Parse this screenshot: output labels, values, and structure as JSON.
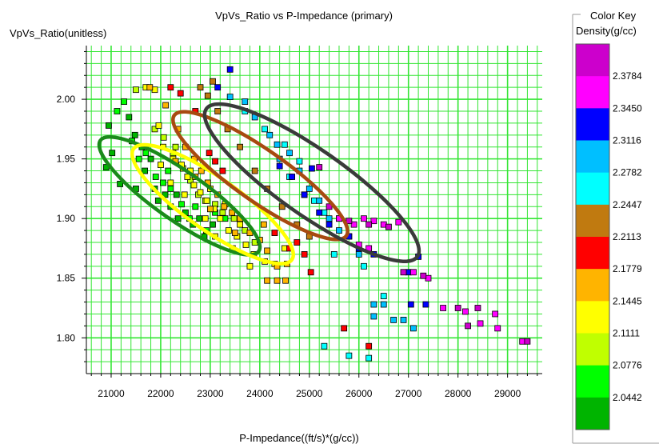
{
  "chart_data": {
    "type": "scatter",
    "title": "VpVs_Ratio  vs P-Impedance (primary)",
    "xlabel": "P-Impedance((ft/s)*(g/cc))",
    "ylabel": "VpVs_Ratio(unitless)",
    "xlim": [
      20500,
      29700
    ],
    "ylim": [
      1.77,
      2.045
    ],
    "grid": true,
    "grid_color": "#33e633",
    "x_ticks": [
      21000,
      22000,
      23000,
      24000,
      25000,
      26000,
      27000,
      28000,
      29000
    ],
    "x_tick_labels": [
      "21000",
      "22000",
      "23000",
      "24000",
      "25000",
      "26000",
      "27000",
      "28000",
      "29000"
    ],
    "y_ticks": [
      1.8,
      1.85,
      1.9,
      1.95,
      2.0
    ],
    "y_tick_labels": [
      "1.80",
      "1.85",
      "1.90",
      "1.95",
      "2.00"
    ],
    "color_key": {
      "title": "Color Key",
      "subtitle": "Density(g/cc)",
      "colors": [
        "#cc00cc",
        "#ff00ff",
        "#0000ff",
        "#00bfff",
        "#00ffff",
        "#c07a10",
        "#ff0000",
        "#ffb400",
        "#ffff00",
        "#c0ff00",
        "#00ff00",
        "#00b400"
      ],
      "labels": [
        "2.3784",
        "2.3450",
        "2.3116",
        "2.2782",
        "2.2447",
        "2.2113",
        "2.1779",
        "2.1445",
        "2.1111",
        "2.0776",
        "2.0442"
      ]
    },
    "ellipses": [
      {
        "color": "#1a8a1a",
        "cx": 22380,
        "cy": 1.919,
        "rx": 1950,
        "ry": 0.0205,
        "angle": 35
      },
      {
        "color": "#ffff00",
        "cx": 23050,
        "cy": 1.912,
        "rx": 1950,
        "ry": 0.022,
        "angle": 35
      },
      {
        "color": "#a84a10",
        "cx": 24010,
        "cy": 1.936,
        "rx": 2120,
        "ry": 0.0215,
        "angle": 35
      },
      {
        "color": "#3a3a3a",
        "cx": 25050,
        "cy": 1.93,
        "rx": 2600,
        "ry": 0.0275,
        "angle": 35
      }
    ],
    "series_points": [
      {
        "color": "#00b400",
        "points": [
          [
            20950,
            1.978
          ],
          [
            20900,
            1.943
          ],
          [
            21020,
            1.955
          ],
          [
            21180,
            1.929
          ],
          [
            21360,
            1.985
          ],
          [
            21480,
            1.97
          ],
          [
            21620,
            1.96
          ],
          [
            21800,
            1.95
          ],
          [
            21680,
            1.94
          ],
          [
            21880,
            1.925
          ],
          [
            21950,
            1.915
          ],
          [
            22090,
            1.92
          ],
          [
            22200,
            1.91
          ],
          [
            22350,
            1.9
          ],
          [
            22500,
            1.905
          ],
          [
            22650,
            1.895
          ],
          [
            22780,
            1.9
          ],
          [
            22880,
            1.885
          ],
          [
            23050,
            1.895
          ],
          [
            22320,
            1.92
          ],
          [
            21500,
            1.925
          ]
        ]
      },
      {
        "color": "#00ff00",
        "points": [
          [
            21120,
            1.99
          ],
          [
            21260,
            1.998
          ],
          [
            21420,
            1.965
          ],
          [
            21560,
            1.95
          ],
          [
            21900,
            1.935
          ],
          [
            22050,
            1.93
          ],
          [
            22200,
            1.925
          ],
          [
            22420,
            1.912
          ],
          [
            22580,
            1.9
          ],
          [
            22700,
            1.91
          ],
          [
            22920,
            1.89
          ],
          [
            23100,
            1.905
          ],
          [
            23300,
            1.9
          ],
          [
            21700,
            1.955
          ],
          [
            22150,
            1.94
          ]
        ]
      },
      {
        "color": "#c0ff00",
        "points": [
          [
            21500,
            2.008
          ],
          [
            21880,
            1.975
          ],
          [
            22060,
            1.968
          ],
          [
            22250,
            1.955
          ],
          [
            22450,
            1.942
          ],
          [
            22600,
            1.932
          ],
          [
            22760,
            1.92
          ],
          [
            22900,
            1.915
          ],
          [
            23100,
            1.912
          ],
          [
            23250,
            1.905
          ],
          [
            23480,
            1.9
          ],
          [
            23700,
            1.89
          ],
          [
            23900,
            1.88
          ],
          [
            22300,
            1.96
          ]
        ]
      },
      {
        "color": "#ffff00",
        "points": [
          [
            21700,
            2.01
          ],
          [
            21880,
            2.008
          ],
          [
            21960,
            1.978
          ],
          [
            22050,
            1.96
          ],
          [
            22250,
            1.95
          ],
          [
            22420,
            1.945
          ],
          [
            22540,
            1.935
          ],
          [
            22670,
            1.928
          ],
          [
            22800,
            1.922
          ],
          [
            22930,
            1.915
          ],
          [
            23080,
            1.908
          ],
          [
            23200,
            1.9
          ],
          [
            23370,
            1.89
          ],
          [
            23540,
            1.885
          ],
          [
            23720,
            1.878
          ],
          [
            23880,
            1.87
          ],
          [
            24100,
            1.864
          ],
          [
            23000,
            1.925
          ],
          [
            22600,
            1.94
          ],
          [
            23300,
            1.912
          ],
          [
            23600,
            1.895
          ],
          [
            22200,
            1.93
          ],
          [
            22480,
            1.92
          ],
          [
            22900,
            1.9
          ],
          [
            23100,
            1.885
          ],
          [
            23450,
            1.875
          ],
          [
            23800,
            1.86
          ],
          [
            24300,
            1.862
          ],
          [
            24500,
            1.875
          ],
          [
            22000,
            1.945
          ]
        ]
      },
      {
        "color": "#ffb400",
        "points": [
          [
            21780,
            2.01
          ],
          [
            22100,
            1.995
          ],
          [
            22350,
            1.975
          ],
          [
            22500,
            1.96
          ],
          [
            22680,
            1.95
          ],
          [
            22820,
            1.94
          ],
          [
            22950,
            1.93
          ],
          [
            23150,
            1.92
          ],
          [
            23280,
            1.91
          ],
          [
            23440,
            1.905
          ],
          [
            23600,
            1.9
          ],
          [
            23800,
            1.888
          ],
          [
            24000,
            1.882
          ],
          [
            24150,
            1.873
          ],
          [
            24350,
            1.86
          ],
          [
            24150,
            1.848
          ],
          [
            24350,
            1.848
          ],
          [
            24520,
            1.848
          ],
          [
            24550,
            1.862
          ],
          [
            22300,
            1.948
          ],
          [
            23000,
            1.908
          ],
          [
            23500,
            1.888
          ],
          [
            24080,
            1.895
          ],
          [
            22700,
            1.935
          ]
        ]
      },
      {
        "color": "#ff0000",
        "points": [
          [
            22200,
            2.01
          ],
          [
            22400,
            2.005
          ],
          [
            22700,
            1.99
          ],
          [
            22980,
            1.955
          ],
          [
            23100,
            1.948
          ],
          [
            23250,
            1.94
          ],
          [
            24600,
            1.875
          ],
          [
            24750,
            1.88
          ],
          [
            24900,
            1.87
          ],
          [
            25030,
            1.855
          ],
          [
            25700,
            1.808
          ],
          [
            26200,
            1.793
          ],
          [
            24300,
            1.888
          ]
        ]
      },
      {
        "color": "#c07a10",
        "points": [
          [
            22950,
            2.003
          ],
          [
            23150,
            1.99
          ],
          [
            23350,
            1.975
          ],
          [
            23600,
            1.96
          ],
          [
            23900,
            1.94
          ],
          [
            24150,
            1.925
          ],
          [
            24450,
            1.91
          ],
          [
            24750,
            1.895
          ],
          [
            25000,
            1.885
          ],
          [
            22800,
            2.01
          ],
          [
            23050,
            2.015
          ]
        ]
      },
      {
        "color": "#00ffff",
        "points": [
          [
            23700,
            1.99
          ],
          [
            24100,
            1.975
          ],
          [
            24500,
            1.962
          ],
          [
            24800,
            1.948
          ],
          [
            24900,
            1.92
          ],
          [
            25100,
            1.915
          ],
          [
            25300,
            1.905
          ],
          [
            25300,
            1.793
          ],
          [
            25800,
            1.785
          ],
          [
            26200,
            1.783
          ],
          [
            26100,
            1.86
          ],
          [
            26500,
            1.835
          ],
          [
            25500,
            1.87
          ],
          [
            24600,
            1.935
          ]
        ]
      },
      {
        "color": "#00bfff",
        "points": [
          [
            23400,
            2.002
          ],
          [
            23700,
            1.998
          ],
          [
            23900,
            1.985
          ],
          [
            24200,
            1.97
          ],
          [
            24350,
            1.962
          ],
          [
            24600,
            1.955
          ],
          [
            24800,
            1.94
          ],
          [
            25000,
            1.925
          ],
          [
            25200,
            1.915
          ],
          [
            25400,
            1.9
          ],
          [
            25600,
            1.89
          ],
          [
            25800,
            1.885
          ],
          [
            26000,
            1.87
          ],
          [
            26300,
            1.828
          ],
          [
            26500,
            1.828
          ],
          [
            26300,
            1.818
          ],
          [
            26700,
            1.815
          ],
          [
            26900,
            1.815
          ],
          [
            27100,
            1.808
          ],
          [
            24400,
            1.95
          ]
        ]
      },
      {
        "color": "#0000ff",
        "points": [
          [
            23400,
            2.025
          ],
          [
            23150,
            2.01
          ],
          [
            24400,
            1.944
          ],
          [
            24650,
            1.935
          ],
          [
            24900,
            1.92
          ],
          [
            25200,
            1.905
          ],
          [
            25400,
            1.895
          ],
          [
            25600,
            1.9
          ],
          [
            25800,
            1.885
          ],
          [
            26000,
            1.875
          ],
          [
            26300,
            1.87
          ],
          [
            27050,
            1.828
          ],
          [
            27350,
            1.828
          ],
          [
            27000,
            1.855
          ],
          [
            27200,
            1.868
          ],
          [
            25050,
            1.942
          ]
        ]
      },
      {
        "color": "#ff00ff",
        "points": [
          [
            25600,
            1.9
          ],
          [
            25900,
            1.895
          ],
          [
            26100,
            1.9
          ],
          [
            26300,
            1.898
          ],
          [
            26500,
            1.895
          ],
          [
            26800,
            1.897
          ],
          [
            27100,
            1.855
          ],
          [
            27400,
            1.85
          ],
          [
            27700,
            1.825
          ],
          [
            28150,
            1.822
          ],
          [
            28450,
            1.812
          ],
          [
            28750,
            1.82
          ],
          [
            28800,
            1.808
          ],
          [
            29300,
            1.797
          ],
          [
            26000,
            1.878
          ],
          [
            26200,
            1.875
          ]
        ]
      },
      {
        "color": "#cc00cc",
        "points": [
          [
            25400,
            1.91
          ],
          [
            25800,
            1.898
          ],
          [
            26200,
            1.895
          ],
          [
            26600,
            1.893
          ],
          [
            26900,
            1.855
          ],
          [
            27300,
            1.852
          ],
          [
            28000,
            1.825
          ],
          [
            28200,
            1.81
          ],
          [
            28400,
            1.825
          ],
          [
            29400,
            1.797
          ],
          [
            25200,
            1.943
          ]
        ]
      }
    ]
  }
}
